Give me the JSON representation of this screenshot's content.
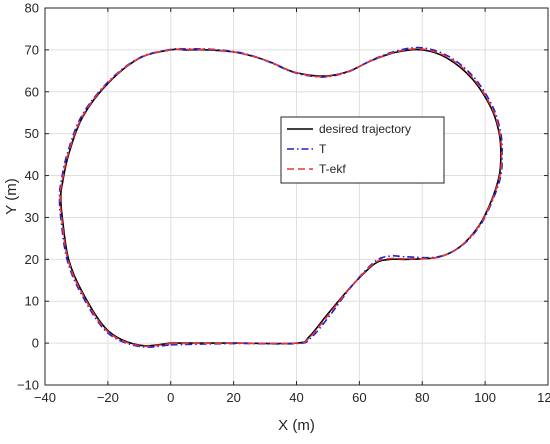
{
  "chart_data": {
    "type": "line",
    "title": "",
    "xlabel": "X (m)",
    "ylabel": "Y (m)",
    "xlim": [
      -40,
      120
    ],
    "ylim": [
      -10,
      80
    ],
    "xticks": [
      -40,
      -20,
      0,
      20,
      40,
      60,
      80,
      100,
      120
    ],
    "yticks": [
      -10,
      0,
      10,
      20,
      30,
      40,
      50,
      60,
      70,
      80
    ],
    "xtick_labels": [
      "−40",
      "−20",
      "0",
      "20",
      "40",
      "60",
      "80",
      "100",
      "120"
    ],
    "ytick_labels": [
      "−10",
      "0",
      "10",
      "20",
      "30",
      "40",
      "50",
      "60",
      "70",
      "80"
    ],
    "grid": true,
    "legend_position": "center-right",
    "series": [
      {
        "name": "desired trajectory",
        "color": "#000000",
        "style": "solid",
        "x": [
          0,
          20,
          40,
          44,
          50,
          58,
          65,
          70,
          75,
          85,
          92,
          98,
          102,
          104.5,
          105,
          104.5,
          102,
          96,
          88,
          80,
          72,
          64,
          57,
          50,
          44,
          38,
          32,
          26,
          20,
          12,
          5,
          0,
          -10,
          -20,
          -28,
          -32.5,
          -34.5,
          -35,
          -34.5,
          -32.5,
          -28,
          -20,
          -10,
          0
        ],
        "y": [
          0,
          0,
          0,
          1.5,
          7,
          14,
          19,
          20,
          20,
          20.5,
          23,
          28,
          34,
          40,
          45,
          50,
          56,
          63,
          68,
          70,
          69.5,
          67.5,
          65,
          63.8,
          64,
          65,
          67,
          68.5,
          69.5,
          70,
          70,
          70,
          68,
          62,
          54,
          45,
          38,
          35,
          30,
          20,
          12,
          3,
          -0.5,
          0
        ]
      },
      {
        "name": "T",
        "color": "#1f1fd6",
        "style": "dashdot",
        "x": [
          0,
          20,
          40,
          44.5,
          50.5,
          58,
          65,
          70,
          75,
          85,
          92.5,
          98.5,
          102.5,
          105,
          105.4,
          105,
          102.5,
          96.5,
          88.5,
          80,
          72,
          64,
          57,
          50,
          44,
          38,
          32,
          26,
          20,
          12,
          5,
          0,
          -10.3,
          -20.4,
          -28.5,
          -33,
          -35,
          -35.4,
          -35,
          -33,
          -28.5,
          -20.3,
          -10,
          0
        ],
        "y": [
          -0.4,
          -0.1,
          -0.1,
          1.2,
          6.5,
          14,
          19.5,
          20.8,
          20.6,
          20.6,
          23.2,
          28.2,
          34.3,
          40,
          45,
          50,
          56.3,
          63.4,
          68.4,
          70.5,
          69.8,
          67.6,
          64.9,
          63.6,
          63.8,
          64.9,
          66.9,
          68.6,
          69.6,
          70.2,
          70.2,
          70.1,
          68,
          62,
          54,
          45,
          38,
          35,
          30,
          20,
          11.8,
          2.6,
          -0.8,
          -0.4
        ]
      },
      {
        "name": "T-ekf",
        "color": "#e8323c",
        "style": "dashed",
        "x": [
          0,
          20,
          40,
          44.2,
          50.2,
          58,
          65,
          70,
          75,
          85,
          92.2,
          98.2,
          102.2,
          104.7,
          105.2,
          104.7,
          102.2,
          96.2,
          88.2,
          80,
          72,
          64,
          57,
          50,
          44,
          38,
          32,
          26,
          20,
          12,
          5,
          0,
          -10.1,
          -20.2,
          -28.2,
          -32.7,
          -34.7,
          -35.2,
          -34.7,
          -32.7,
          -28.2,
          -20.1,
          -10,
          0
        ],
        "y": [
          -0.1,
          0,
          0,
          1.4,
          6.8,
          14,
          19.2,
          20.2,
          20.1,
          20.5,
          23.1,
          28.1,
          34.1,
          40,
          45,
          50,
          56.1,
          63.2,
          68.2,
          70.2,
          69.6,
          67.5,
          65,
          63.7,
          63.9,
          65,
          67,
          68.5,
          69.5,
          70.1,
          70.1,
          70,
          68,
          62,
          54,
          45,
          38,
          35,
          30,
          20,
          11.9,
          2.8,
          -0.6,
          -0.1
        ]
      }
    ]
  }
}
